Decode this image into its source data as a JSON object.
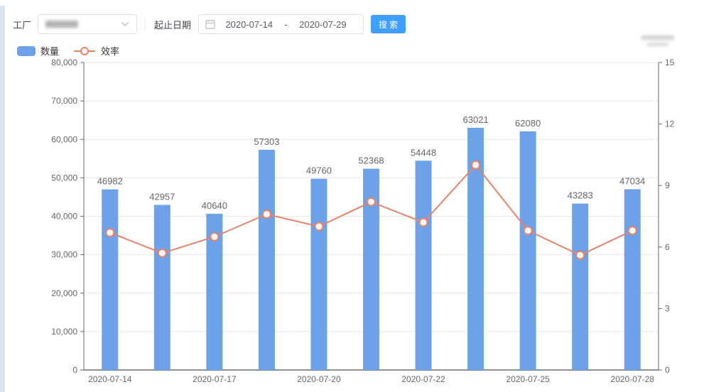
{
  "toolbar": {
    "factory_label": "工厂",
    "date_range_label": "起止日期",
    "date_start": "2020-07-14",
    "date_separator": "-",
    "date_end": "2020-07-29",
    "search_button": "搜索"
  },
  "legend": {
    "quantity": "数量",
    "efficiency": "效率"
  },
  "colors": {
    "bar": "#6DA2E8",
    "line": "#E8826B",
    "point_fill": "#FFFAF7",
    "grid": "#E8E8E8",
    "axis": "#61686F",
    "tick_text": "#666666",
    "bar_label_text": "#666666",
    "button": "#409EFF"
  },
  "chart_data": {
    "type": "bar",
    "combo": "bar+line dual axis",
    "grid": true,
    "legend_position": "top-left",
    "x_tick_labels": [
      "2020-07-14",
      "2020-07-17",
      "2020-07-20",
      "2020-07-22",
      "2020-07-25",
      "2020-07-28"
    ],
    "x_tick_bar_indices": [
      0,
      2,
      4,
      6,
      8,
      10
    ],
    "series": [
      {
        "name": "数量",
        "type": "bar",
        "y_axis": "left",
        "values": [
          46982,
          42957,
          40640,
          57303,
          49760,
          52368,
          54448,
          63021,
          62080,
          43283,
          47034
        ],
        "data_labels": [
          "46982",
          "42957",
          "40640",
          "57303",
          "49760",
          "52368",
          "54448",
          "63021",
          "62080",
          "43283",
          "47034"
        ]
      },
      {
        "name": "效率",
        "type": "line",
        "y_axis": "right",
        "values": [
          6.7,
          5.7,
          6.5,
          7.6,
          7.0,
          8.2,
          7.2,
          10.0,
          6.8,
          5.6,
          6.8
        ]
      }
    ],
    "left_axis": {
      "min": 0,
      "max": 80000,
      "step": 10000,
      "tick_labels": [
        "0",
        "10,000",
        "20,000",
        "30,000",
        "40,000",
        "50,000",
        "60,000",
        "70,000",
        "80,000"
      ]
    },
    "right_axis": {
      "min": 0,
      "max": 15,
      "step": 3,
      "tick_labels": [
        "0",
        "3",
        "6",
        "9",
        "12",
        "15"
      ]
    }
  }
}
